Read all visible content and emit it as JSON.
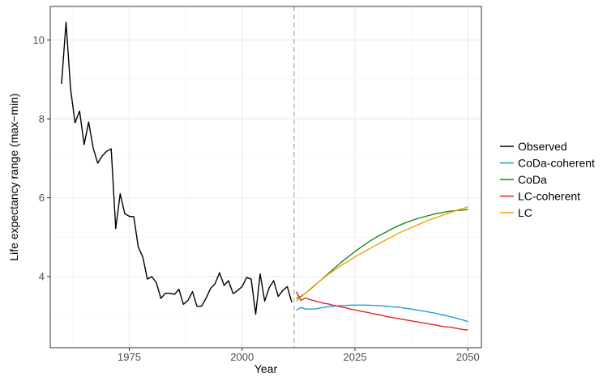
{
  "chart_data": {
    "type": "line",
    "title": "",
    "xlabel": "Year",
    "ylabel": "Life expectancy range (max−min)",
    "xlim": [
      1957.5,
      2053
    ],
    "ylim": [
      2.2,
      10.85
    ],
    "xticks": [
      1975,
      2000,
      2025,
      2050
    ],
    "yticks": [
      4,
      6,
      8,
      10
    ],
    "grid": true,
    "legend_position": "right",
    "forecast_start_year": 2011.5,
    "series": [
      {
        "name": "Observed",
        "color": "#000000",
        "x": [
          1960,
          1961,
          1962,
          1963,
          1964,
          1965,
          1966,
          1967,
          1968,
          1969,
          1970,
          1971,
          1972,
          1973,
          1974,
          1975,
          1976,
          1977,
          1978,
          1979,
          1980,
          1981,
          1982,
          1983,
          1984,
          1985,
          1986,
          1987,
          1988,
          1989,
          1990,
          1991,
          1992,
          1993,
          1994,
          1995,
          1996,
          1997,
          1998,
          1999,
          2000,
          2001,
          2002,
          2003,
          2004,
          2005,
          2006,
          2007,
          2008,
          2009,
          2010,
          2011
        ],
        "values": [
          8.88,
          10.45,
          8.76,
          7.9,
          8.2,
          7.35,
          7.92,
          7.27,
          6.88,
          7.06,
          7.18,
          7.24,
          5.22,
          6.1,
          5.6,
          5.53,
          5.52,
          4.75,
          4.5,
          3.94,
          4.0,
          3.85,
          3.45,
          3.58,
          3.58,
          3.55,
          3.68,
          3.3,
          3.4,
          3.62,
          3.25,
          3.25,
          3.45,
          3.7,
          3.82,
          4.1,
          3.78,
          3.9,
          3.57,
          3.65,
          3.75,
          3.98,
          3.94,
          3.05,
          4.07,
          3.38,
          3.72,
          3.9,
          3.5,
          3.65,
          3.75,
          3.35
        ]
      },
      {
        "name": "CoDa-coherent",
        "color": "#1e9fd6",
        "x": [
          2012,
          2013,
          2014,
          2015,
          2016,
          2017,
          2018,
          2019,
          2020,
          2021,
          2022,
          2023,
          2024,
          2025,
          2026,
          2027,
          2028,
          2029,
          2030,
          2031,
          2032,
          2033,
          2034,
          2035,
          2036,
          2037,
          2038,
          2039,
          2040,
          2041,
          2042,
          2043,
          2044,
          2045,
          2046,
          2047,
          2048,
          2049,
          2050
        ],
        "values": [
          3.15,
          3.22,
          3.18,
          3.18,
          3.18,
          3.2,
          3.22,
          3.24,
          3.25,
          3.26,
          3.27,
          3.27,
          3.28,
          3.28,
          3.28,
          3.28,
          3.28,
          3.27,
          3.27,
          3.26,
          3.25,
          3.24,
          3.23,
          3.22,
          3.2,
          3.19,
          3.17,
          3.15,
          3.13,
          3.11,
          3.09,
          3.07,
          3.04,
          3.02,
          2.99,
          2.96,
          2.93,
          2.9,
          2.86
        ]
      },
      {
        "name": "CoDa",
        "color": "#1a8a1a",
        "x": [
          2012,
          2013,
          2014,
          2015,
          2016,
          2017,
          2018,
          2019,
          2020,
          2021,
          2022,
          2023,
          2024,
          2025,
          2026,
          2027,
          2028,
          2029,
          2030,
          2031,
          2032,
          2033,
          2034,
          2035,
          2036,
          2037,
          2038,
          2039,
          2040,
          2041,
          2042,
          2043,
          2044,
          2045,
          2046,
          2047,
          2048,
          2049,
          2050
        ],
        "values": [
          3.45,
          3.5,
          3.58,
          3.67,
          3.77,
          3.87,
          3.97,
          4.07,
          4.17,
          4.27,
          4.37,
          4.46,
          4.55,
          4.64,
          4.72,
          4.8,
          4.88,
          4.95,
          5.02,
          5.08,
          5.14,
          5.2,
          5.26,
          5.31,
          5.36,
          5.4,
          5.44,
          5.48,
          5.51,
          5.54,
          5.57,
          5.6,
          5.62,
          5.64,
          5.66,
          5.67,
          5.68,
          5.69,
          5.7
        ]
      },
      {
        "name": "LC-coherent",
        "color": "#e8222e",
        "x": [
          2012,
          2013,
          2014,
          2015,
          2016,
          2017,
          2018,
          2019,
          2020,
          2021,
          2022,
          2023,
          2024,
          2025,
          2026,
          2027,
          2028,
          2029,
          2030,
          2031,
          2032,
          2033,
          2034,
          2035,
          2036,
          2037,
          2038,
          2039,
          2040,
          2041,
          2042,
          2043,
          2044,
          2045,
          2046,
          2047,
          2048,
          2049,
          2050
        ],
        "values": [
          3.62,
          3.4,
          3.46,
          3.42,
          3.39,
          3.36,
          3.33,
          3.31,
          3.28,
          3.26,
          3.23,
          3.21,
          3.18,
          3.16,
          3.13,
          3.11,
          3.09,
          3.06,
          3.04,
          3.02,
          2.99,
          2.97,
          2.95,
          2.93,
          2.91,
          2.89,
          2.87,
          2.85,
          2.83,
          2.81,
          2.79,
          2.77,
          2.75,
          2.73,
          2.72,
          2.7,
          2.68,
          2.66,
          2.65
        ]
      },
      {
        "name": "LC",
        "color": "#f5a00a",
        "x": [
          2012,
          2013,
          2014,
          2015,
          2016,
          2017,
          2018,
          2019,
          2020,
          2021,
          2022,
          2023,
          2024,
          2025,
          2026,
          2027,
          2028,
          2029,
          2030,
          2031,
          2032,
          2033,
          2034,
          2035,
          2036,
          2037,
          2038,
          2039,
          2040,
          2041,
          2042,
          2043,
          2044,
          2045,
          2046,
          2047,
          2048,
          2049,
          2050
        ],
        "values": [
          3.38,
          3.48,
          3.58,
          3.68,
          3.78,
          3.87,
          3.96,
          4.05,
          4.13,
          4.21,
          4.29,
          4.36,
          4.43,
          4.5,
          4.57,
          4.63,
          4.69,
          4.76,
          4.82,
          4.88,
          4.94,
          5.0,
          5.06,
          5.12,
          5.17,
          5.22,
          5.27,
          5.32,
          5.37,
          5.42,
          5.46,
          5.5,
          5.54,
          5.58,
          5.62,
          5.66,
          5.7,
          5.73,
          5.77
        ]
      }
    ]
  }
}
